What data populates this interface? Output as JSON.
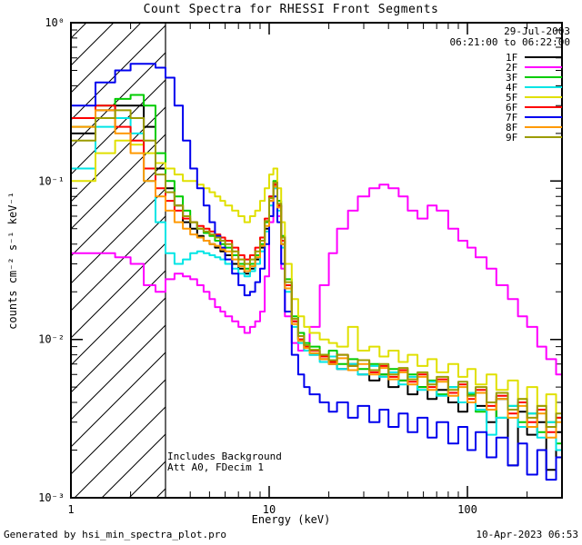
{
  "title": "Count Spectra for RHESSI Front Segments",
  "header": {
    "date": "29-Jul-2003",
    "time_range": "06:21:00 to 06:22:00"
  },
  "footer": {
    "left": "Generated by hsi_min_spectra_plot.pro",
    "right": "10-Apr-2023 06:53"
  },
  "chart_data": {
    "type": "line",
    "mode": "histogram-steps",
    "x_scale": "log",
    "y_scale": "log",
    "xlabel": "Energy (keV)",
    "ylabel": "counts cm⁻² s⁻¹ keV⁻¹",
    "xlim": [
      1,
      300
    ],
    "ylim": [
      0.001,
      1
    ],
    "x_ticks": [
      {
        "value": 1,
        "label": "1"
      },
      {
        "value": 10,
        "label": "10"
      },
      {
        "value": 100,
        "label": "100"
      }
    ],
    "y_ticks": [
      {
        "value": 1,
        "label": "10⁰"
      },
      {
        "value": 0.1,
        "label": "10⁻¹"
      },
      {
        "value": 0.01,
        "label": "10⁻²"
      },
      {
        "value": 0.001,
        "label": "10⁻³"
      }
    ],
    "attenuated_region": {
      "x_start": 1,
      "x_end": 3
    },
    "annotations": [
      "Includes Background",
      "Att A0, FDecim 1"
    ],
    "legend_position": "top-right",
    "energy_bin_edges_keV": [
      1.0,
      1.33,
      1.67,
      2.0,
      2.33,
      2.67,
      3.0,
      3.33,
      3.67,
      4.0,
      4.33,
      4.67,
      5.0,
      5.33,
      5.67,
      6.0,
      6.5,
      7.0,
      7.5,
      8.0,
      8.5,
      9.0,
      9.5,
      10.0,
      10.5,
      11.0,
      11.5,
      12.0,
      13.0,
      14.0,
      15.0,
      16.0,
      18.0,
      20.0,
      22.0,
      25.0,
      28.0,
      32.0,
      36.0,
      40.0,
      45.0,
      50.0,
      56.0,
      63.0,
      70.0,
      80.0,
      90.0,
      100.0,
      110.0,
      125.0,
      140.0,
      160.0,
      180.0,
      200.0,
      225.0,
      250.0,
      280.0,
      300.0
    ],
    "series": [
      {
        "name": "1F",
        "color": "#000000",
        "values": [
          0.2,
          0.28,
          0.3,
          0.3,
          0.22,
          0.12,
          0.09,
          0.07,
          0.055,
          0.05,
          0.045,
          0.042,
          0.04,
          0.038,
          0.036,
          0.034,
          0.03,
          0.028,
          0.026,
          0.028,
          0.032,
          0.038,
          0.05,
          0.075,
          0.095,
          0.07,
          0.04,
          0.022,
          0.013,
          0.01,
          0.0085,
          0.008,
          0.0075,
          0.007,
          0.0065,
          0.007,
          0.006,
          0.0055,
          0.006,
          0.005,
          0.0055,
          0.0045,
          0.005,
          0.0042,
          0.0048,
          0.004,
          0.0035,
          0.0045,
          0.0038,
          0.003,
          0.0042,
          0.0016,
          0.0035,
          0.0025,
          0.003,
          0.0015,
          0.0026
        ]
      },
      {
        "name": "2F",
        "color": "#ff00ff",
        "values": [
          0.035,
          0.035,
          0.033,
          0.03,
          0.022,
          0.02,
          0.024,
          0.026,
          0.025,
          0.024,
          0.022,
          0.02,
          0.018,
          0.016,
          0.015,
          0.014,
          0.013,
          0.012,
          0.011,
          0.012,
          0.013,
          0.015,
          0.025,
          0.055,
          0.09,
          0.06,
          0.028,
          0.014,
          0.0095,
          0.0085,
          0.009,
          0.012,
          0.022,
          0.035,
          0.05,
          0.065,
          0.08,
          0.09,
          0.095,
          0.09,
          0.08,
          0.065,
          0.058,
          0.07,
          0.065,
          0.05,
          0.042,
          0.038,
          0.033,
          0.028,
          0.022,
          0.018,
          0.014,
          0.012,
          0.009,
          0.0075,
          0.006
        ]
      },
      {
        "name": "3F",
        "color": "#00cc00",
        "values": [
          0.22,
          0.3,
          0.33,
          0.35,
          0.3,
          0.15,
          0.1,
          0.08,
          0.065,
          0.055,
          0.05,
          0.047,
          0.045,
          0.042,
          0.04,
          0.038,
          0.034,
          0.03,
          0.028,
          0.03,
          0.034,
          0.04,
          0.055,
          0.08,
          0.1,
          0.075,
          0.045,
          0.024,
          0.014,
          0.011,
          0.0095,
          0.009,
          0.008,
          0.0085,
          0.007,
          0.0075,
          0.0065,
          0.007,
          0.006,
          0.0065,
          0.0055,
          0.006,
          0.005,
          0.0055,
          0.0045,
          0.005,
          0.004,
          0.0045,
          0.0035,
          0.004,
          0.0032,
          0.0038,
          0.003,
          0.0034,
          0.0026,
          0.003,
          0.0022
        ]
      },
      {
        "name": "4F",
        "color": "#00e5e5",
        "values": [
          0.12,
          0.22,
          0.25,
          0.2,
          0.1,
          0.055,
          0.035,
          0.03,
          0.032,
          0.035,
          0.036,
          0.035,
          0.034,
          0.033,
          0.032,
          0.03,
          0.028,
          0.026,
          0.025,
          0.027,
          0.03,
          0.036,
          0.048,
          0.07,
          0.09,
          0.065,
          0.038,
          0.02,
          0.012,
          0.0095,
          0.0085,
          0.008,
          0.0072,
          0.0078,
          0.0065,
          0.007,
          0.006,
          0.0068,
          0.0058,
          0.0062,
          0.0052,
          0.0058,
          0.0048,
          0.0054,
          0.0044,
          0.005,
          0.004,
          0.0046,
          0.0036,
          0.0025,
          0.0032,
          0.0038,
          0.0028,
          0.0034,
          0.0024,
          0.003,
          0.002
        ]
      },
      {
        "name": "5F",
        "color": "#e0e000",
        "values": [
          0.1,
          0.15,
          0.18,
          0.17,
          0.15,
          0.13,
          0.12,
          0.11,
          0.1,
          0.1,
          0.095,
          0.09,
          0.085,
          0.08,
          0.075,
          0.07,
          0.065,
          0.06,
          0.055,
          0.06,
          0.065,
          0.075,
          0.09,
          0.11,
          0.12,
          0.09,
          0.055,
          0.03,
          0.018,
          0.014,
          0.012,
          0.011,
          0.01,
          0.0095,
          0.009,
          0.012,
          0.0085,
          0.009,
          0.0078,
          0.0085,
          0.0072,
          0.008,
          0.0068,
          0.0075,
          0.0062,
          0.007,
          0.0058,
          0.0065,
          0.0052,
          0.006,
          0.0048,
          0.0055,
          0.0042,
          0.005,
          0.0038,
          0.0045,
          0.0032
        ]
      },
      {
        "name": "6F",
        "color": "#ff0000",
        "values": [
          0.25,
          0.3,
          0.22,
          0.18,
          0.12,
          0.09,
          0.075,
          0.065,
          0.058,
          0.055,
          0.052,
          0.05,
          0.048,
          0.046,
          0.044,
          0.042,
          0.038,
          0.034,
          0.032,
          0.034,
          0.038,
          0.044,
          0.058,
          0.08,
          0.095,
          0.07,
          0.042,
          0.022,
          0.013,
          0.01,
          0.009,
          0.0085,
          0.0078,
          0.0072,
          0.008,
          0.0068,
          0.0074,
          0.0062,
          0.0068,
          0.0058,
          0.0064,
          0.0054,
          0.006,
          0.005,
          0.0056,
          0.0046,
          0.0052,
          0.0042,
          0.0048,
          0.0038,
          0.0044,
          0.0034,
          0.004,
          0.003,
          0.0036,
          0.0026,
          0.0032
        ]
      },
      {
        "name": "7F",
        "color": "#0000ee",
        "values": [
          0.3,
          0.42,
          0.5,
          0.55,
          0.55,
          0.52,
          0.45,
          0.3,
          0.18,
          0.12,
          0.09,
          0.07,
          0.055,
          0.045,
          0.038,
          0.032,
          0.026,
          0.022,
          0.019,
          0.02,
          0.023,
          0.028,
          0.04,
          0.06,
          0.08,
          0.055,
          0.03,
          0.015,
          0.008,
          0.006,
          0.005,
          0.0045,
          0.004,
          0.0035,
          0.004,
          0.0032,
          0.0038,
          0.003,
          0.0036,
          0.0028,
          0.0034,
          0.0026,
          0.0032,
          0.0024,
          0.003,
          0.0022,
          0.0028,
          0.002,
          0.0026,
          0.0018,
          0.0024,
          0.0016,
          0.0022,
          0.0014,
          0.002,
          0.0013,
          0.0018
        ]
      },
      {
        "name": "8F",
        "color": "#ff9900",
        "values": [
          0.22,
          0.28,
          0.2,
          0.15,
          0.1,
          0.08,
          0.065,
          0.055,
          0.05,
          0.046,
          0.044,
          0.042,
          0.04,
          0.039,
          0.037,
          0.036,
          0.032,
          0.029,
          0.027,
          0.029,
          0.033,
          0.039,
          0.052,
          0.075,
          0.092,
          0.068,
          0.04,
          0.021,
          0.0125,
          0.0098,
          0.0088,
          0.0082,
          0.0075,
          0.007,
          0.0076,
          0.0064,
          0.007,
          0.006,
          0.0066,
          0.0056,
          0.0062,
          0.0052,
          0.0058,
          0.0048,
          0.0054,
          0.0044,
          0.005,
          0.004,
          0.0046,
          0.0036,
          0.0042,
          0.0032,
          0.0038,
          0.0028,
          0.0034,
          0.0024,
          0.003
        ]
      },
      {
        "name": "9F",
        "color": "#9c9c00",
        "values": [
          0.18,
          0.25,
          0.28,
          0.25,
          0.18,
          0.11,
          0.085,
          0.07,
          0.06,
          0.055,
          0.05,
          0.048,
          0.046,
          0.044,
          0.042,
          0.04,
          0.036,
          0.032,
          0.03,
          0.032,
          0.036,
          0.042,
          0.056,
          0.078,
          0.098,
          0.072,
          0.044,
          0.023,
          0.0135,
          0.0105,
          0.0092,
          0.0086,
          0.008,
          0.0074,
          0.008,
          0.0068,
          0.0074,
          0.0064,
          0.007,
          0.006,
          0.0066,
          0.0056,
          0.0062,
          0.0052,
          0.0058,
          0.0048,
          0.0054,
          0.0044,
          0.005,
          0.004,
          0.0046,
          0.0036,
          0.0042,
          0.0032,
          0.0038,
          0.0028,
          0.0034
        ]
      }
    ]
  }
}
